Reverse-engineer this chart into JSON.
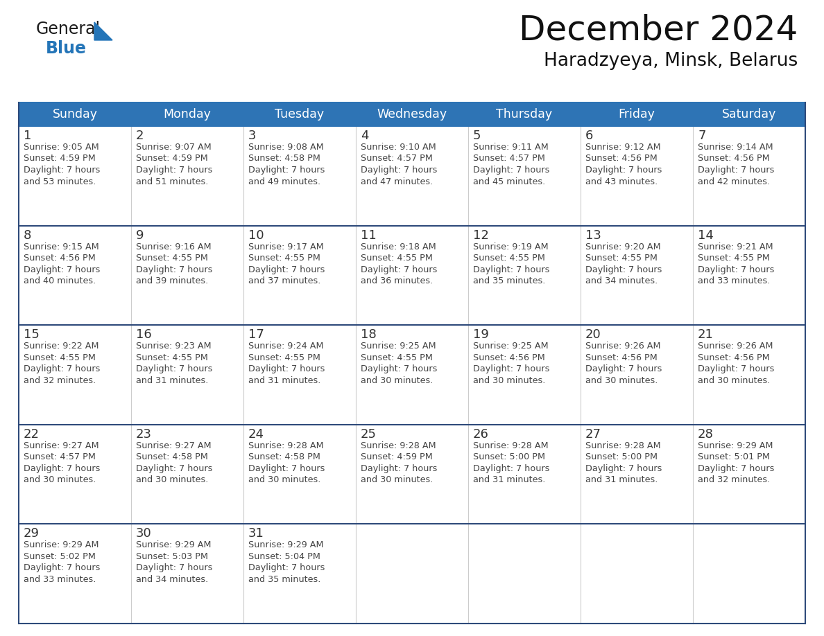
{
  "title": "December 2024",
  "subtitle": "Haradzyeya, Minsk, Belarus",
  "header_bg": "#2E74B5",
  "header_text": "#FFFFFF",
  "day_num_color": "#333333",
  "info_text_color": "#444444",
  "row_sep_color": "#2E4A7A",
  "col_sep_color": "#CCCCCC",
  "days_of_week": [
    "Sunday",
    "Monday",
    "Tuesday",
    "Wednesday",
    "Thursday",
    "Friday",
    "Saturday"
  ],
  "weeks": [
    [
      {
        "day": "1",
        "sunrise": "9:05 AM",
        "sunset": "4:59 PM",
        "dl_min": "53"
      },
      {
        "day": "2",
        "sunrise": "9:07 AM",
        "sunset": "4:59 PM",
        "dl_min": "51"
      },
      {
        "day": "3",
        "sunrise": "9:08 AM",
        "sunset": "4:58 PM",
        "dl_min": "49"
      },
      {
        "day": "4",
        "sunrise": "9:10 AM",
        "sunset": "4:57 PM",
        "dl_min": "47"
      },
      {
        "day": "5",
        "sunrise": "9:11 AM",
        "sunset": "4:57 PM",
        "dl_min": "45"
      },
      {
        "day": "6",
        "sunrise": "9:12 AM",
        "sunset": "4:56 PM",
        "dl_min": "43"
      },
      {
        "day": "7",
        "sunrise": "9:14 AM",
        "sunset": "4:56 PM",
        "dl_min": "42"
      }
    ],
    [
      {
        "day": "8",
        "sunrise": "9:15 AM",
        "sunset": "4:56 PM",
        "dl_min": "40"
      },
      {
        "day": "9",
        "sunrise": "9:16 AM",
        "sunset": "4:55 PM",
        "dl_min": "39"
      },
      {
        "day": "10",
        "sunrise": "9:17 AM",
        "sunset": "4:55 PM",
        "dl_min": "37"
      },
      {
        "day": "11",
        "sunrise": "9:18 AM",
        "sunset": "4:55 PM",
        "dl_min": "36"
      },
      {
        "day": "12",
        "sunrise": "9:19 AM",
        "sunset": "4:55 PM",
        "dl_min": "35"
      },
      {
        "day": "13",
        "sunrise": "9:20 AM",
        "sunset": "4:55 PM",
        "dl_min": "34"
      },
      {
        "day": "14",
        "sunrise": "9:21 AM",
        "sunset": "4:55 PM",
        "dl_min": "33"
      }
    ],
    [
      {
        "day": "15",
        "sunrise": "9:22 AM",
        "sunset": "4:55 PM",
        "dl_min": "32"
      },
      {
        "day": "16",
        "sunrise": "9:23 AM",
        "sunset": "4:55 PM",
        "dl_min": "31"
      },
      {
        "day": "17",
        "sunrise": "9:24 AM",
        "sunset": "4:55 PM",
        "dl_min": "31"
      },
      {
        "day": "18",
        "sunrise": "9:25 AM",
        "sunset": "4:55 PM",
        "dl_min": "30"
      },
      {
        "day": "19",
        "sunrise": "9:25 AM",
        "sunset": "4:56 PM",
        "dl_min": "30"
      },
      {
        "day": "20",
        "sunrise": "9:26 AM",
        "sunset": "4:56 PM",
        "dl_min": "30"
      },
      {
        "day": "21",
        "sunrise": "9:26 AM",
        "sunset": "4:56 PM",
        "dl_min": "30"
      }
    ],
    [
      {
        "day": "22",
        "sunrise": "9:27 AM",
        "sunset": "4:57 PM",
        "dl_min": "30"
      },
      {
        "day": "23",
        "sunrise": "9:27 AM",
        "sunset": "4:58 PM",
        "dl_min": "30"
      },
      {
        "day": "24",
        "sunrise": "9:28 AM",
        "sunset": "4:58 PM",
        "dl_min": "30"
      },
      {
        "day": "25",
        "sunrise": "9:28 AM",
        "sunset": "4:59 PM",
        "dl_min": "30"
      },
      {
        "day": "26",
        "sunrise": "9:28 AM",
        "sunset": "5:00 PM",
        "dl_min": "31"
      },
      {
        "day": "27",
        "sunrise": "9:28 AM",
        "sunset": "5:00 PM",
        "dl_min": "31"
      },
      {
        "day": "28",
        "sunrise": "9:29 AM",
        "sunset": "5:01 PM",
        "dl_min": "32"
      }
    ],
    [
      {
        "day": "29",
        "sunrise": "9:29 AM",
        "sunset": "5:02 PM",
        "dl_min": "33"
      },
      {
        "day": "30",
        "sunrise": "9:29 AM",
        "sunset": "5:03 PM",
        "dl_min": "34"
      },
      {
        "day": "31",
        "sunrise": "9:29 AM",
        "sunset": "5:04 PM",
        "dl_min": "35"
      },
      null,
      null,
      null,
      null
    ]
  ],
  "logo_general_color": "#1a1a1a",
  "logo_blue_color": "#2475B8",
  "logo_triangle_color": "#2475B8",
  "fig_width": 11.88,
  "fig_height": 9.18,
  "dpi": 100
}
